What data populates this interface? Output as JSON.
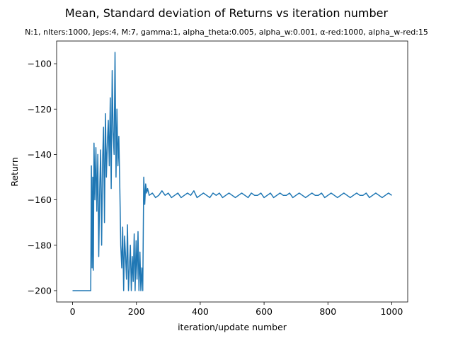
{
  "chart_data": {
    "type": "line",
    "title": "Mean, Standard deviation of Returns vs iteration number",
    "subtitle": "N:1, nIters:1000, Jeps:4, M:7, gamma:1, alpha_theta:0.005, alpha_w:0.001, α-red:1000, alpha_w-red:15",
    "xlabel": "iteration/update number",
    "ylabel": "Return",
    "xlim": [
      -50,
      1050
    ],
    "ylim": [
      -205,
      -90
    ],
    "xticks": [
      0,
      200,
      400,
      600,
      800,
      1000
    ],
    "yticks": [
      -200,
      -180,
      -160,
      -140,
      -120,
      -100
    ],
    "grid": false,
    "line_color": "#1f77b4",
    "series": [
      {
        "x": [
          0,
          10,
          20,
          30,
          40,
          50,
          57,
          59,
          61,
          63,
          65,
          67,
          70,
          73,
          76,
          79,
          82,
          85,
          88,
          91,
          94,
          97,
          100,
          103,
          106,
          109,
          112,
          115,
          118,
          121,
          124,
          127,
          130,
          133,
          136,
          139,
          142,
          145,
          148,
          151,
          154,
          157,
          160,
          163,
          166,
          169,
          172,
          175,
          178,
          181,
          184,
          187,
          190,
          193,
          196,
          199,
          202,
          205,
          208,
          211,
          214,
          217,
          220,
          223,
          226,
          229,
          232,
          235,
          240,
          250,
          260,
          270,
          280,
          290,
          300,
          310,
          320,
          330,
          340,
          350,
          360,
          370,
          380,
          390,
          400,
          410,
          420,
          430,
          440,
          450,
          460,
          470,
          480,
          490,
          500,
          510,
          520,
          530,
          540,
          550,
          560,
          570,
          580,
          590,
          600,
          610,
          620,
          630,
          640,
          650,
          660,
          670,
          680,
          690,
          700,
          710,
          720,
          730,
          740,
          750,
          760,
          770,
          780,
          790,
          800,
          810,
          820,
          830,
          840,
          850,
          860,
          870,
          880,
          890,
          900,
          910,
          920,
          930,
          940,
          950,
          960,
          970,
          980,
          990,
          1000
        ],
        "y": [
          -200,
          -200,
          -200,
          -200,
          -200,
          -200,
          -200,
          -145,
          -190,
          -150,
          -191,
          -135,
          -160,
          -137,
          -165,
          -140,
          -185,
          -155,
          -138,
          -180,
          -143,
          -128,
          -170,
          -122,
          -150,
          -135,
          -125,
          -145,
          -115,
          -155,
          -103,
          -130,
          -140,
          -95,
          -150,
          -120,
          -145,
          -132,
          -155,
          -180,
          -190,
          -172,
          -200,
          -176,
          -185,
          -195,
          -171,
          -200,
          -190,
          -180,
          -200,
          -185,
          -196,
          -175,
          -200,
          -178,
          -195,
          -174,
          -200,
          -183,
          -200,
          -190,
          -200,
          -150,
          -162,
          -153,
          -157,
          -155,
          -158,
          -157,
          -159,
          -158,
          -156,
          -158,
          -157,
          -159,
          -158,
          -157,
          -159,
          -158,
          -157,
          -158,
          -156,
          -159,
          -158,
          -157,
          -158,
          -159,
          -157,
          -158,
          -157,
          -159,
          -158,
          -157,
          -158,
          -159,
          -158,
          -157,
          -158,
          -159,
          -157,
          -158,
          -158,
          -157,
          -159,
          -158,
          -157,
          -159,
          -158,
          -157,
          -158,
          -158,
          -157,
          -159,
          -158,
          -157,
          -158,
          -159,
          -158,
          -157,
          -158,
          -158,
          -157,
          -159,
          -158,
          -157,
          -158,
          -159,
          -158,
          -157,
          -158,
          -159,
          -158,
          -157,
          -158,
          -158,
          -157,
          -159,
          -158,
          -157,
          -158,
          -159,
          -158,
          -157,
          -158
        ]
      }
    ]
  }
}
